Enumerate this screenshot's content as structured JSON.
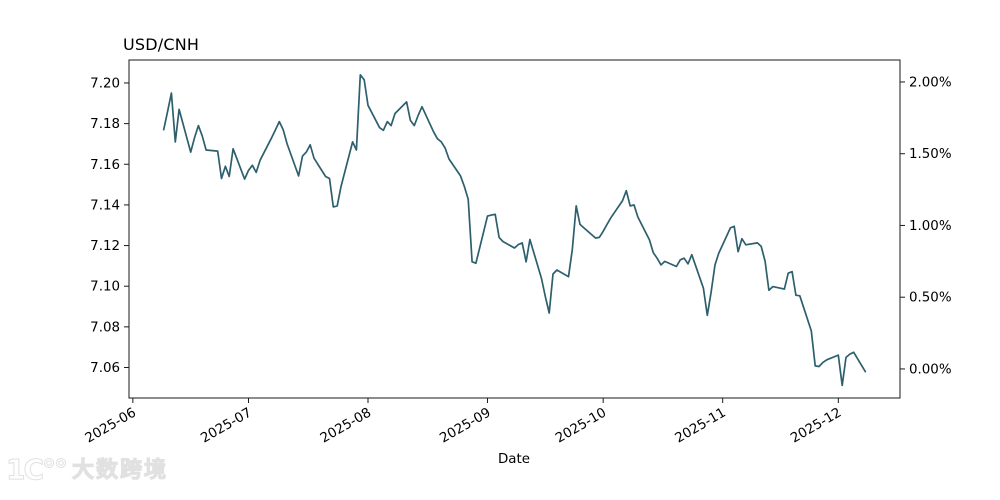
{
  "watermark": {
    "logo": "1C°°",
    "text": "大数跨境"
  },
  "chart_data": {
    "type": "line",
    "title": "USD/CNH",
    "xlabel": "Date",
    "series_name": "USD/CNH",
    "line_color": "#2d5f6d",
    "grid": false,
    "legend_position": "none",
    "xlim": [
      "2025-05-31",
      "2025-12-17"
    ],
    "ylim": [
      7.045,
      7.2113
    ],
    "left_axis": {
      "ticks": [
        7.06,
        7.08,
        7.1,
        7.12,
        7.14,
        7.16,
        7.18,
        7.2
      ],
      "labels": [
        "7.06",
        "7.08",
        "7.10",
        "7.12",
        "7.14",
        "7.16",
        "7.18",
        "7.20"
      ]
    },
    "right_axis": {
      "base_value": 7.0593,
      "tick_percents": [
        0.0,
        0.5,
        1.0,
        1.5,
        2.0
      ],
      "labels": [
        "0.00%",
        "0.50%",
        "1.00%",
        "1.50%",
        "2.00%"
      ]
    },
    "x_axis": {
      "tick_dates": [
        "2025-06-01",
        "2025-07-01",
        "2025-08-01",
        "2025-09-01",
        "2025-10-01",
        "2025-11-01",
        "2025-12-01"
      ],
      "labels": [
        "2025-06",
        "2025-07",
        "2025-08",
        "2025-09",
        "2025-10",
        "2025-11",
        "2025-12"
      ]
    },
    "x": [
      "2025-06-09",
      "2025-06-10",
      "2025-06-11",
      "2025-06-12",
      "2025-06-13",
      "2025-06-16",
      "2025-06-17",
      "2025-06-18",
      "2025-06-19",
      "2025-06-20",
      "2025-06-23",
      "2025-06-24",
      "2025-06-25",
      "2025-06-26",
      "2025-06-27",
      "2025-06-30",
      "2025-07-01",
      "2025-07-02",
      "2025-07-03",
      "2025-07-04",
      "2025-07-07",
      "2025-07-08",
      "2025-07-09",
      "2025-07-10",
      "2025-07-11",
      "2025-07-14",
      "2025-07-15",
      "2025-07-16",
      "2025-07-17",
      "2025-07-18",
      "2025-07-21",
      "2025-07-22",
      "2025-07-23",
      "2025-07-24",
      "2025-07-25",
      "2025-07-28",
      "2025-07-29",
      "2025-07-30",
      "2025-07-31",
      "2025-08-01",
      "2025-08-04",
      "2025-08-05",
      "2025-08-06",
      "2025-08-07",
      "2025-08-08",
      "2025-08-11",
      "2025-08-12",
      "2025-08-13",
      "2025-08-14",
      "2025-08-15",
      "2025-08-18",
      "2025-08-19",
      "2025-08-20",
      "2025-08-21",
      "2025-08-22",
      "2025-08-25",
      "2025-08-26",
      "2025-08-27",
      "2025-08-28",
      "2025-08-29",
      "2025-09-01",
      "2025-09-02",
      "2025-09-03",
      "2025-09-04",
      "2025-09-05",
      "2025-09-08",
      "2025-09-09",
      "2025-09-10",
      "2025-09-11",
      "2025-09-12",
      "2025-09-15",
      "2025-09-16",
      "2025-09-17",
      "2025-09-18",
      "2025-09-19",
      "2025-09-22",
      "2025-09-23",
      "2025-09-24",
      "2025-09-25",
      "2025-09-26",
      "2025-09-29",
      "2025-09-30",
      "2025-10-01",
      "2025-10-02",
      "2025-10-03",
      "2025-10-06",
      "2025-10-07",
      "2025-10-08",
      "2025-10-09",
      "2025-10-10",
      "2025-10-13",
      "2025-10-14",
      "2025-10-15",
      "2025-10-16",
      "2025-10-17",
      "2025-10-20",
      "2025-10-21",
      "2025-10-22",
      "2025-10-23",
      "2025-10-24",
      "2025-10-27",
      "2025-10-28",
      "2025-10-29",
      "2025-10-30",
      "2025-10-31",
      "2025-11-03",
      "2025-11-04",
      "2025-11-05",
      "2025-11-06",
      "2025-11-07",
      "2025-11-10",
      "2025-11-11",
      "2025-11-12",
      "2025-11-13",
      "2025-11-14",
      "2025-11-17",
      "2025-11-18",
      "2025-11-19",
      "2025-11-20",
      "2025-11-21",
      "2025-11-24",
      "2025-11-25",
      "2025-11-26",
      "2025-11-27",
      "2025-11-28",
      "2025-12-01",
      "2025-12-02",
      "2025-12-03",
      "2025-12-04",
      "2025-12-05",
      "2025-12-08"
    ],
    "y": [
      7.177,
      7.186,
      7.195,
      7.171,
      7.187,
      7.166,
      7.173,
      7.179,
      7.174,
      7.167,
      7.1665,
      7.153,
      7.159,
      7.154,
      7.1676,
      7.1527,
      7.157,
      7.1595,
      7.156,
      7.162,
      7.173,
      7.177,
      7.181,
      7.177,
      7.17,
      7.1543,
      7.164,
      7.166,
      7.1696,
      7.163,
      7.154,
      7.153,
      7.139,
      7.1395,
      7.149,
      7.171,
      7.167,
      7.204,
      7.2015,
      7.189,
      7.178,
      7.1767,
      7.181,
      7.179,
      7.185,
      7.1907,
      7.1816,
      7.179,
      7.184,
      7.1883,
      7.176,
      7.1726,
      7.171,
      7.168,
      7.1626,
      7.1543,
      7.149,
      7.1428,
      7.112,
      7.1113,
      7.1345,
      7.135,
      7.1354,
      7.124,
      7.122,
      7.1188,
      7.1205,
      7.1213,
      7.112,
      7.123,
      7.1038,
      7.095,
      7.0868,
      7.106,
      7.108,
      7.1047,
      7.118,
      7.1395,
      7.1304,
      7.1287,
      7.1237,
      7.124,
      7.127,
      7.1304,
      7.1337,
      7.142,
      7.147,
      7.1395,
      7.14,
      7.134,
      7.1229,
      7.1165,
      7.1138,
      7.1105,
      7.1122,
      7.1097,
      7.113,
      7.1138,
      7.111,
      7.1155,
      7.099,
      7.0857,
      7.097,
      7.1105,
      7.1163,
      7.1287,
      7.1295,
      7.117,
      7.1234,
      7.1204,
      7.1213,
      7.1196,
      7.1122,
      7.098,
      7.0998,
      7.0986,
      7.1064,
      7.1072,
      7.0956,
      7.0953,
      7.078,
      7.0608,
      7.0605,
      7.0625,
      7.0638,
      7.0661,
      7.0512,
      7.065,
      7.0666,
      7.0675,
      7.058
    ]
  }
}
